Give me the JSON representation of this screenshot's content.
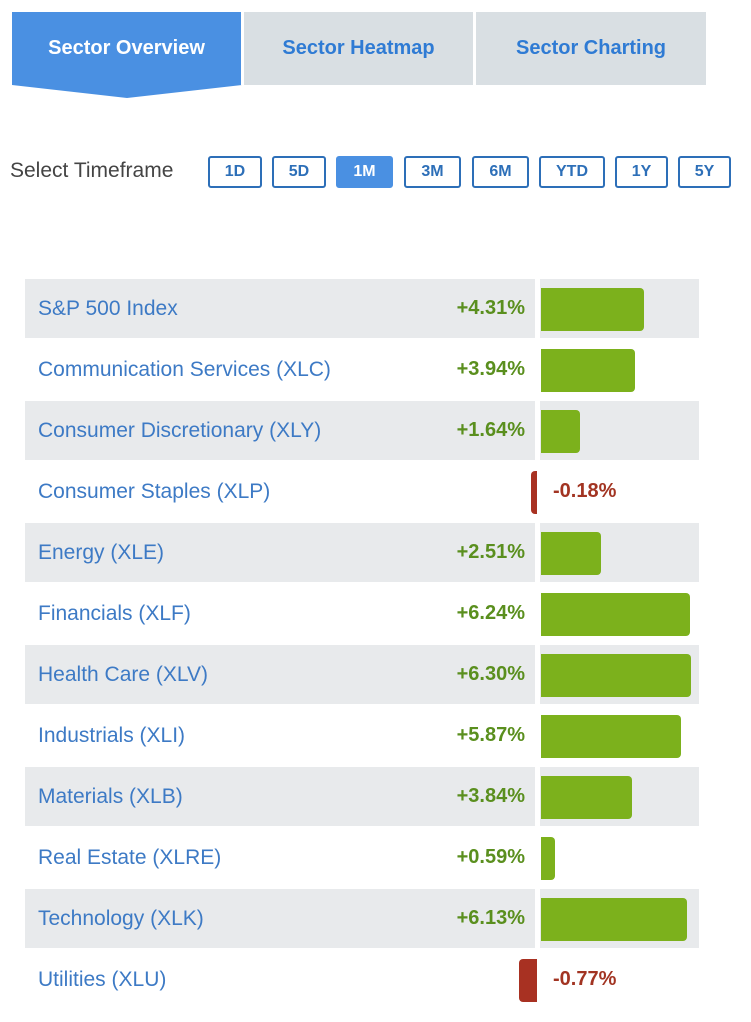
{
  "tabs": [
    {
      "label": "Sector Overview",
      "active": true
    },
    {
      "label": "Sector Heatmap",
      "active": false
    },
    {
      "label": "Sector Charting",
      "active": false
    }
  ],
  "timeframe": {
    "label": "Select Timeframe",
    "options": [
      "1D",
      "5D",
      "1M",
      "3M",
      "6M",
      "YTD",
      "1Y",
      "5Y"
    ],
    "selected": "1M"
  },
  "colors": {
    "accent": "#4a90e2",
    "positive_bar": "#7cb11c",
    "negative_bar": "#a83122",
    "positive_text": "#5a8f1e",
    "negative_text": "#a23422",
    "link": "#3d7ac5"
  },
  "sectors": [
    {
      "name": "S&P 500 Index",
      "change_label": "+4.31%",
      "change": 4.31
    },
    {
      "name": "Communication Services (XLC)",
      "change_label": "+3.94%",
      "change": 3.94
    },
    {
      "name": "Consumer Discretionary (XLY)",
      "change_label": "+1.64%",
      "change": 1.64
    },
    {
      "name": "Consumer Staples (XLP)",
      "change_label": "-0.18%",
      "change": -0.18
    },
    {
      "name": "Energy (XLE)",
      "change_label": "+2.51%",
      "change": 2.51
    },
    {
      "name": "Financials (XLF)",
      "change_label": "+6.24%",
      "change": 6.24
    },
    {
      "name": "Health Care (XLV)",
      "change_label": "+6.30%",
      "change": 6.3
    },
    {
      "name": "Industrials (XLI)",
      "change_label": "+5.87%",
      "change": 5.87
    },
    {
      "name": "Materials (XLB)",
      "change_label": "+3.84%",
      "change": 3.84
    },
    {
      "name": "Real Estate (XLRE)",
      "change_label": "+0.59%",
      "change": 0.59
    },
    {
      "name": "Technology (XLK)",
      "change_label": "+6.13%",
      "change": 6.13
    },
    {
      "name": "Utilities (XLU)",
      "change_label": "-0.77%",
      "change": -0.77
    }
  ]
}
